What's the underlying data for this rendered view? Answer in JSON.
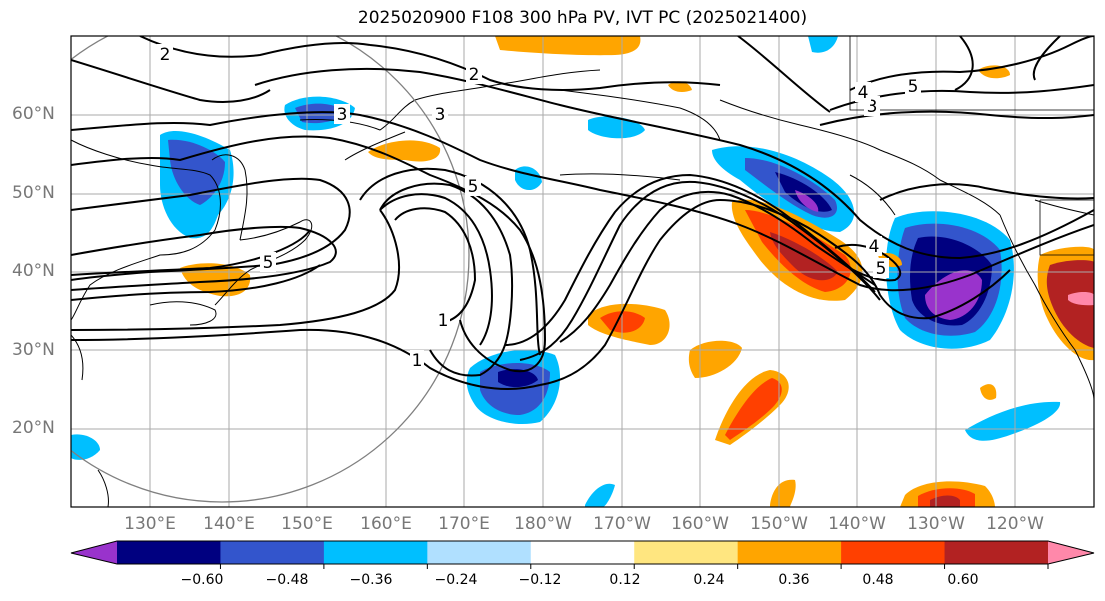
{
  "title": "2025020900 F108 300 hPa PV, IVT PC (2025021400)",
  "lat_labels": [
    "60°N",
    "50°N",
    "40°N",
    "30°N",
    "20°N"
  ],
  "lon_labels": [
    "130°E",
    "140°E",
    "150°E",
    "160°E",
    "170°E",
    "180°W",
    "170°W",
    "160°W",
    "150°W",
    "140°W",
    "130°W",
    "120°W"
  ],
  "contour_labels": [
    "2",
    "2",
    "3",
    "3",
    "3",
    "4",
    "4",
    "5",
    "5",
    "5",
    "5",
    "1",
    "1"
  ],
  "colorbar": {
    "tick_labels": [
      "−0.60",
      "−0.48",
      "−0.36",
      "−0.24",
      "−0.12",
      "0.12",
      "0.24",
      "0.36",
      "0.48",
      "0.60"
    ],
    "colors": [
      "#9933cc",
      "#000080",
      "#3355cc",
      "#00bfff",
      "#b0e0ff",
      "#ffffff",
      "#ffe680",
      "#ffa500",
      "#ff4000",
      "#b22222",
      "#ff88aa"
    ]
  },
  "colors": {
    "contour": "#000000",
    "coast": "#000000",
    "grid": "#aaaaaa",
    "circle": "#808080"
  }
}
